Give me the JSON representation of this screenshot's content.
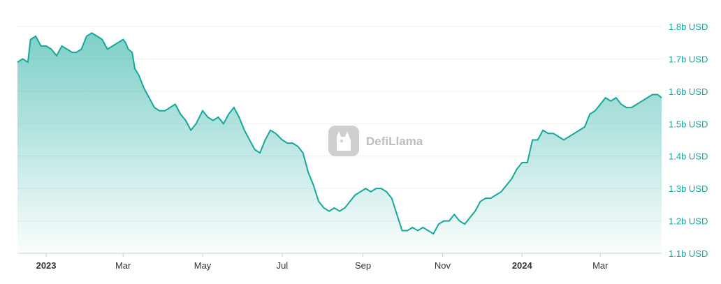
{
  "chart_data": {
    "type": "area",
    "title": "",
    "xlabel": "",
    "ylabel": "",
    "ylim": [
      1.1,
      1.8
    ],
    "y_ticks": [
      "1.1b USD",
      "1.2b USD",
      "1.3b USD",
      "1.4b USD",
      "1.5b USD",
      "1.6b USD",
      "1.7b USD",
      "1.8b USD"
    ],
    "x_ticks": [
      {
        "label": "2023",
        "date": "2023-01-01",
        "bold": true
      },
      {
        "label": "Mar",
        "date": "2023-03-01",
        "bold": false
      },
      {
        "label": "May",
        "date": "2023-05-01",
        "bold": false
      },
      {
        "label": "Jul",
        "date": "2023-07-01",
        "bold": false
      },
      {
        "label": "Sep",
        "date": "2023-09-01",
        "bold": false
      },
      {
        "label": "Nov",
        "date": "2023-11-01",
        "bold": false
      },
      {
        "label": "2024",
        "date": "2024-01-01",
        "bold": true
      },
      {
        "label": "Mar",
        "date": "2024-03-01",
        "bold": false
      }
    ],
    "xlim": [
      "2022-12-10",
      "2024-04-17"
    ],
    "grid": true,
    "legend": "none",
    "colors": {
      "line": "#14a89b",
      "fill_top": "#14a89b",
      "grid": "#f0f0f0",
      "axis": "#cccccc"
    },
    "series": [
      {
        "x": [
          "2022-12-10",
          "2022-12-14",
          "2022-12-18",
          "2022-12-20",
          "2022-12-24",
          "2022-12-28",
          "2023-01-01",
          "2023-01-05",
          "2023-01-09",
          "2023-01-13",
          "2023-01-17",
          "2023-01-21",
          "2023-01-24",
          "2023-01-28",
          "2023-02-01",
          "2023-02-05",
          "2023-02-09",
          "2023-02-13",
          "2023-02-17",
          "2023-02-21",
          "2023-02-25",
          "2023-03-01",
          "2023-03-03",
          "2023-03-05",
          "2023-03-08",
          "2023-03-10",
          "2023-03-13",
          "2023-03-17",
          "2023-03-21",
          "2023-03-25",
          "2023-03-29",
          "2023-04-02",
          "2023-04-06",
          "2023-04-10",
          "2023-04-14",
          "2023-04-18",
          "2023-04-22",
          "2023-04-26",
          "2023-05-01",
          "2023-05-05",
          "2023-05-09",
          "2023-05-13",
          "2023-05-17",
          "2023-05-21",
          "2023-05-25",
          "2023-05-29",
          "2023-06-02",
          "2023-06-06",
          "2023-06-10",
          "2023-06-14",
          "2023-06-18",
          "2023-06-22",
          "2023-06-26",
          "2023-07-01",
          "2023-07-05",
          "2023-07-09",
          "2023-07-13",
          "2023-07-17",
          "2023-07-21",
          "2023-07-25",
          "2023-07-29",
          "2023-08-02",
          "2023-08-06",
          "2023-08-10",
          "2023-08-14",
          "2023-08-18",
          "2023-08-22",
          "2023-08-26",
          "2023-08-30",
          "2023-09-03",
          "2023-09-07",
          "2023-09-11",
          "2023-09-15",
          "2023-09-19",
          "2023-09-23",
          "2023-09-27",
          "2023-10-01",
          "2023-10-05",
          "2023-10-09",
          "2023-10-13",
          "2023-10-17",
          "2023-10-21",
          "2023-10-25",
          "2023-10-29",
          "2023-11-02",
          "2023-11-06",
          "2023-11-10",
          "2023-11-14",
          "2023-11-18",
          "2023-11-22",
          "2023-11-26",
          "2023-11-30",
          "2023-12-04",
          "2023-12-08",
          "2023-12-12",
          "2023-12-16",
          "2023-12-20",
          "2023-12-24",
          "2023-12-28",
          "2024-01-01",
          "2024-01-05",
          "2024-01-09",
          "2024-01-13",
          "2024-01-17",
          "2024-01-21",
          "2024-01-25",
          "2024-01-29",
          "2024-02-02",
          "2024-02-06",
          "2024-02-10",
          "2024-02-14",
          "2024-02-18",
          "2024-02-22",
          "2024-02-26",
          "2024-03-01",
          "2024-03-05",
          "2024-03-09",
          "2024-03-13",
          "2024-03-17",
          "2024-03-21",
          "2024-03-25",
          "2024-03-29",
          "2024-04-02",
          "2024-04-06",
          "2024-04-10",
          "2024-04-14",
          "2024-04-17"
        ],
        "values": [
          1.69,
          1.7,
          1.69,
          1.76,
          1.77,
          1.74,
          1.74,
          1.73,
          1.71,
          1.74,
          1.73,
          1.72,
          1.72,
          1.73,
          1.77,
          1.78,
          1.77,
          1.76,
          1.73,
          1.74,
          1.75,
          1.76,
          1.75,
          1.73,
          1.72,
          1.67,
          1.65,
          1.61,
          1.58,
          1.55,
          1.54,
          1.54,
          1.55,
          1.56,
          1.53,
          1.51,
          1.48,
          1.5,
          1.54,
          1.52,
          1.51,
          1.52,
          1.5,
          1.53,
          1.55,
          1.52,
          1.48,
          1.45,
          1.42,
          1.41,
          1.45,
          1.48,
          1.47,
          1.45,
          1.44,
          1.44,
          1.43,
          1.41,
          1.35,
          1.31,
          1.26,
          1.24,
          1.23,
          1.24,
          1.23,
          1.24,
          1.26,
          1.28,
          1.29,
          1.3,
          1.29,
          1.3,
          1.3,
          1.29,
          1.27,
          1.22,
          1.17,
          1.17,
          1.18,
          1.17,
          1.18,
          1.17,
          1.16,
          1.19,
          1.2,
          1.2,
          1.22,
          1.2,
          1.19,
          1.21,
          1.23,
          1.26,
          1.27,
          1.27,
          1.28,
          1.29,
          1.31,
          1.33,
          1.36,
          1.38,
          1.38,
          1.45,
          1.45,
          1.48,
          1.47,
          1.47,
          1.46,
          1.45,
          1.46,
          1.47,
          1.48,
          1.49,
          1.53,
          1.54,
          1.56,
          1.58,
          1.57,
          1.58,
          1.56,
          1.55,
          1.55,
          1.56,
          1.57,
          1.58,
          1.59,
          1.59,
          1.58
        ]
      }
    ]
  },
  "watermark": {
    "text": "DefiLlama",
    "icon": "llama-logo-icon"
  }
}
